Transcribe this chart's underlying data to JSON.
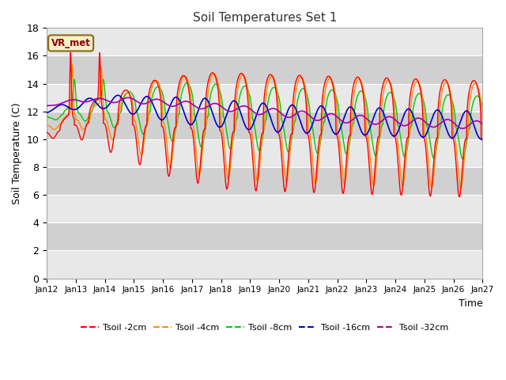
{
  "title": "Soil Temperatures Set 1",
  "xlabel": "Time",
  "ylabel": "Soil Temperature (C)",
  "ylim": [
    0,
    18
  ],
  "yticks": [
    0,
    2,
    4,
    6,
    8,
    10,
    12,
    14,
    16,
    18
  ],
  "n_days": 15,
  "xtick_labels": [
    "Jan 12",
    "Jan 13",
    "Jan 14",
    "Jan 15",
    "Jan 16",
    "Jan 17",
    "Jan 18",
    "Jan 19",
    "Jan 20",
    "Jan 21",
    "Jan 22",
    "Jan 23",
    "Jan 24",
    "Jan 25",
    "Jan 26",
    "Jan 27"
  ],
  "series_colors": [
    "#ff0000",
    "#ff8c00",
    "#00cc00",
    "#0000cc",
    "#aa00aa"
  ],
  "series_labels": [
    "Tsoil -2cm",
    "Tsoil -4cm",
    "Tsoil -8cm",
    "Tsoil -16cm",
    "Tsoil -32cm"
  ],
  "bg_color_light": "#e8e8e8",
  "bg_color_dark": "#d0d0d0",
  "annotation_text": "VR_met",
  "annotation_color": "#8B0000",
  "annotation_bg": "#f5f0c8",
  "annotation_border": "#8B6914"
}
